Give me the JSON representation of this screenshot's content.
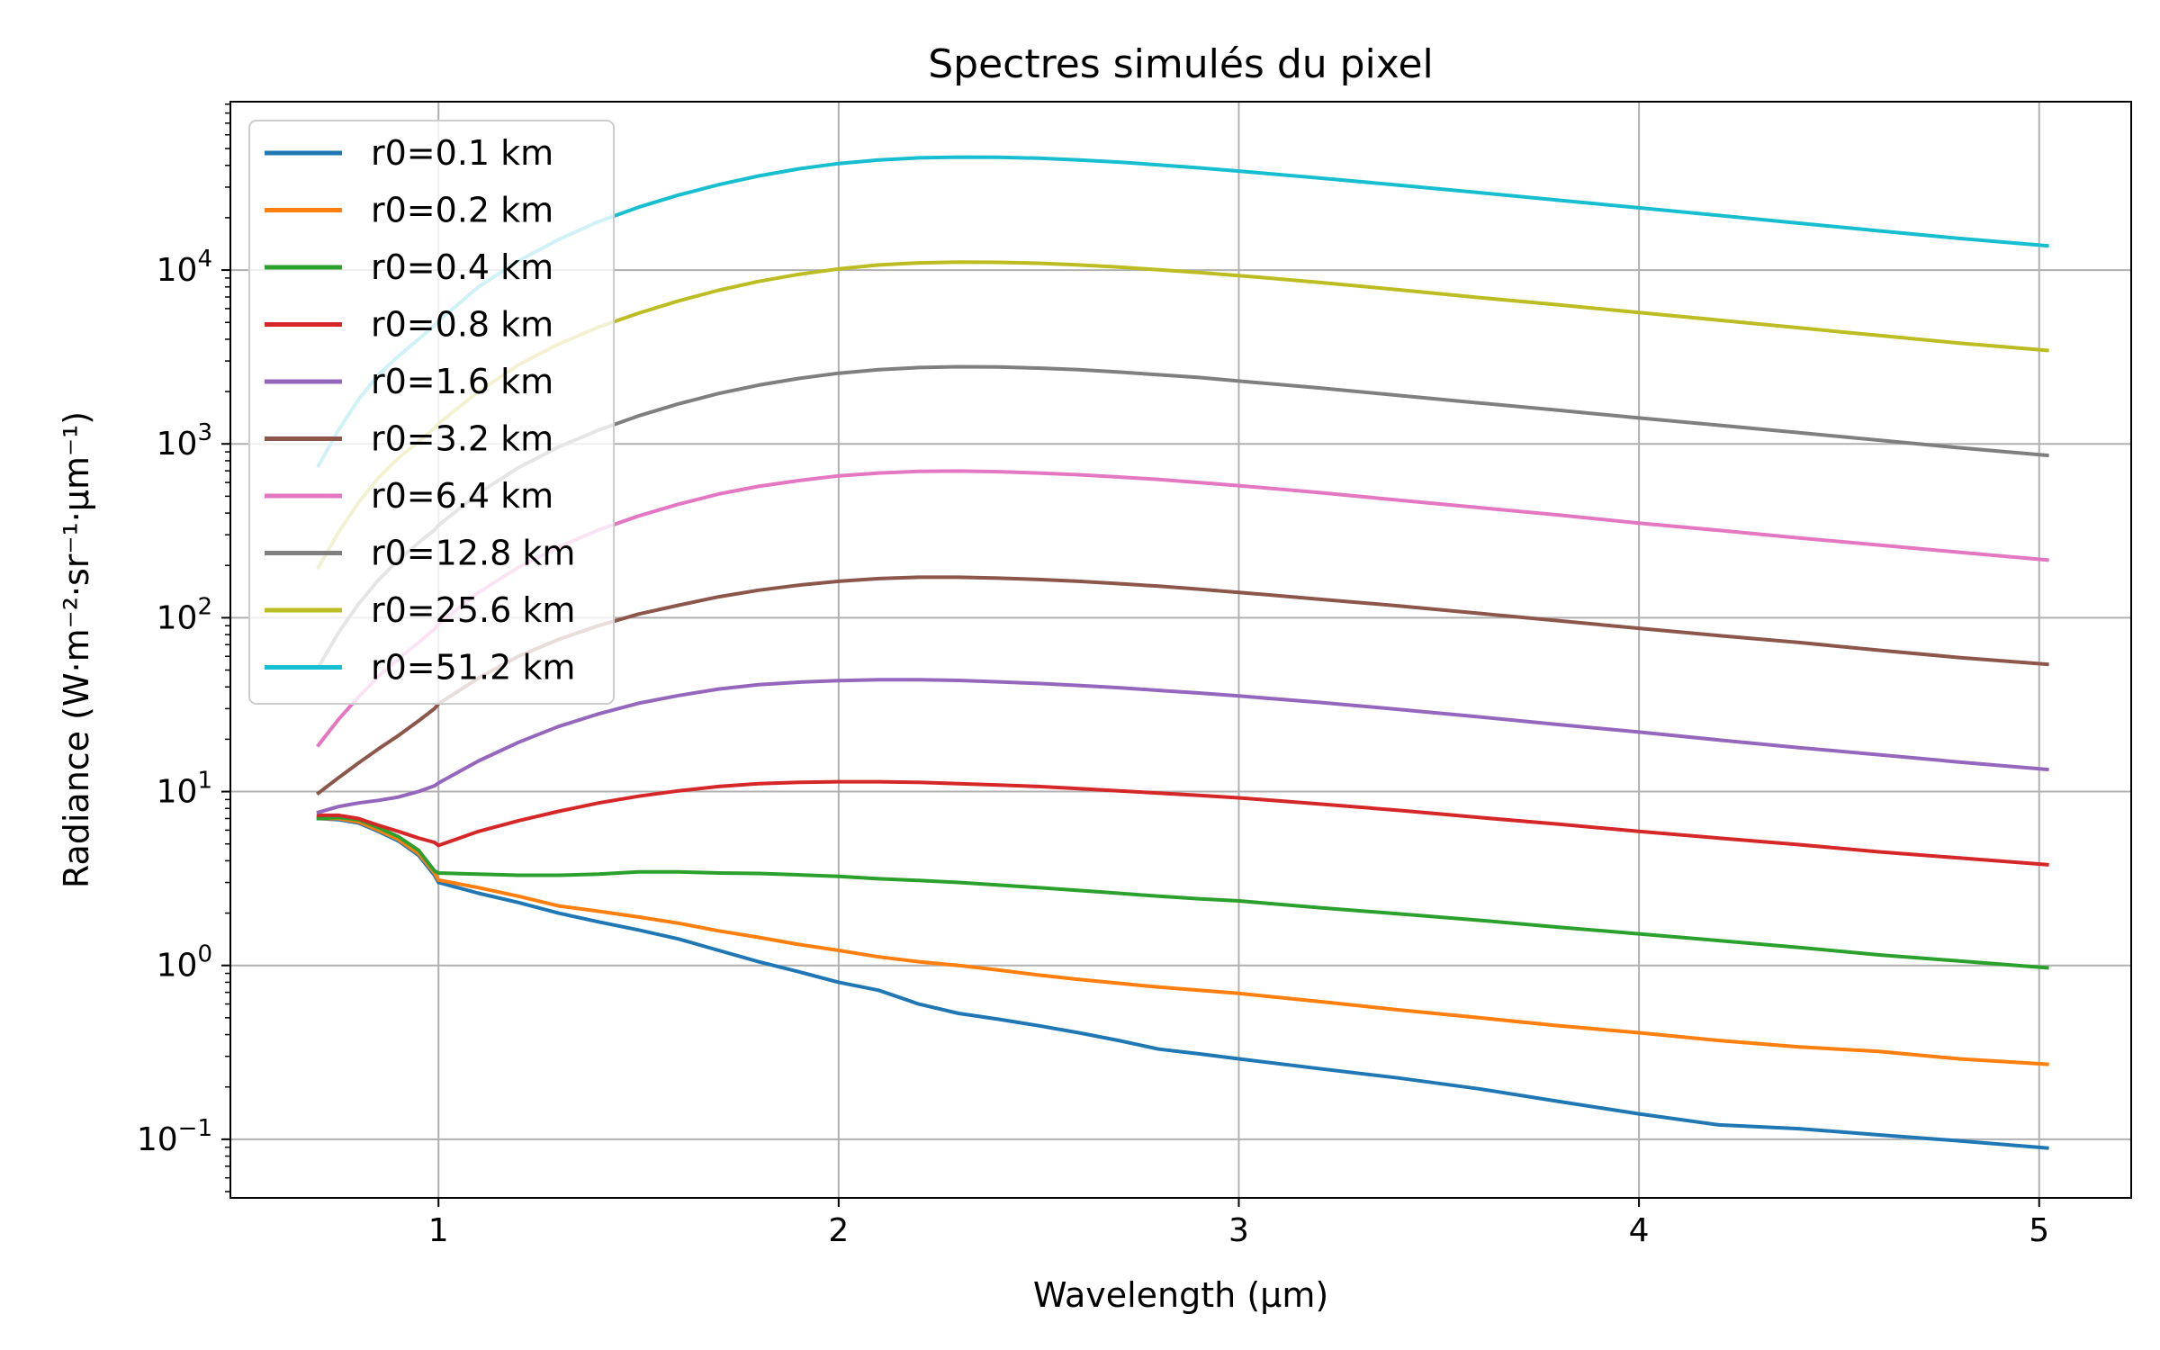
{
  "chart_data": {
    "type": "line",
    "title": "Spectres simulés du pixel",
    "xlabel": "Wavelength (µm)",
    "ylabel": "Radiance (W·m⁻²·sr⁻¹·µm⁻¹)",
    "yscale": "log",
    "xlim": [
      0.48,
      5.23
    ],
    "ylim": [
      0.046,
      93000
    ],
    "x_ticks": [
      {
        "value": 1,
        "label": "1"
      },
      {
        "value": 2,
        "label": "2"
      },
      {
        "value": 3,
        "label": "3"
      },
      {
        "value": 4,
        "label": "4"
      },
      {
        "value": 5,
        "label": "5"
      }
    ],
    "y_ticks": [
      {
        "value": 0.1,
        "base": "10",
        "exp": "−1"
      },
      {
        "value": 1,
        "base": "10",
        "exp": "0"
      },
      {
        "value": 10,
        "base": "10",
        "exp": "1"
      },
      {
        "value": 100,
        "base": "10",
        "exp": "2"
      },
      {
        "value": 1000,
        "base": "10",
        "exp": "3"
      },
      {
        "value": 10000,
        "base": "10",
        "exp": "4"
      }
    ],
    "grid": true,
    "legend_position": "top-left",
    "x": [
      0.7,
      0.75,
      0.8,
      0.85,
      0.9,
      0.95,
      0.99,
      1.0,
      1.1,
      1.2,
      1.3,
      1.4,
      1.5,
      1.6,
      1.7,
      1.8,
      1.9,
      2.0,
      2.1,
      2.2,
      2.3,
      2.4,
      2.5,
      2.6,
      2.7,
      2.8,
      2.9,
      3.0,
      3.2,
      3.4,
      3.6,
      3.8,
      4.0,
      4.2,
      4.4,
      4.6,
      4.8,
      5.02
    ],
    "series": [
      {
        "name": "r0=0.1 km",
        "color": "#1f77b4",
        "values": [
          7.0,
          6.9,
          6.6,
          5.9,
          5.2,
          4.3,
          3.3,
          3.0,
          2.6,
          2.3,
          2.0,
          1.78,
          1.6,
          1.42,
          1.22,
          1.05,
          0.92,
          0.8,
          0.72,
          0.6,
          0.53,
          0.49,
          0.45,
          0.41,
          0.37,
          0.33,
          0.31,
          0.29,
          0.255,
          0.225,
          0.195,
          0.165,
          0.14,
          0.121,
          0.115,
          0.106,
          0.098,
          0.089
        ]
      },
      {
        "name": "r0=0.2 km",
        "color": "#ff7f0e",
        "values": [
          7.0,
          7.0,
          6.7,
          6.0,
          5.3,
          4.4,
          3.4,
          3.1,
          2.8,
          2.5,
          2.2,
          2.05,
          1.9,
          1.75,
          1.58,
          1.45,
          1.32,
          1.22,
          1.12,
          1.05,
          1.0,
          0.94,
          0.88,
          0.83,
          0.79,
          0.75,
          0.72,
          0.69,
          0.62,
          0.555,
          0.5,
          0.45,
          0.41,
          0.37,
          0.34,
          0.32,
          0.29,
          0.27
        ]
      },
      {
        "name": "r0=0.4 km",
        "color": "#2ca02c",
        "values": [
          7.0,
          7.1,
          6.9,
          6.2,
          5.5,
          4.6,
          3.5,
          3.4,
          3.35,
          3.3,
          3.3,
          3.35,
          3.45,
          3.45,
          3.4,
          3.38,
          3.32,
          3.25,
          3.15,
          3.08,
          3.0,
          2.9,
          2.8,
          2.7,
          2.6,
          2.5,
          2.42,
          2.35,
          2.15,
          1.98,
          1.82,
          1.66,
          1.52,
          1.39,
          1.27,
          1.15,
          1.06,
          0.97
        ]
      },
      {
        "name": "r0=0.8 km",
        "color": "#d62728",
        "values": [
          7.3,
          7.3,
          7.0,
          6.4,
          5.9,
          5.4,
          5.1,
          4.9,
          5.9,
          6.8,
          7.7,
          8.6,
          9.4,
          10.1,
          10.7,
          11.1,
          11.3,
          11.4,
          11.4,
          11.3,
          11.1,
          10.9,
          10.7,
          10.4,
          10.1,
          9.8,
          9.5,
          9.2,
          8.5,
          7.8,
          7.1,
          6.5,
          5.9,
          5.4,
          4.95,
          4.5,
          4.15,
          3.8
        ]
      },
      {
        "name": "r0=1.6 km",
        "color": "#9467bd",
        "values": [
          7.6,
          8.2,
          8.6,
          8.9,
          9.3,
          10.0,
          10.8,
          11.2,
          15.0,
          19.2,
          23.7,
          28.0,
          32.2,
          35.7,
          38.9,
          41.2,
          42.6,
          43.5,
          44.0,
          44.0,
          43.6,
          42.8,
          41.9,
          40.8,
          39.6,
          38.2,
          36.9,
          35.5,
          32.6,
          29.7,
          26.9,
          24.3,
          22.0,
          19.8,
          17.9,
          16.3,
          14.8,
          13.4
        ]
      },
      {
        "name": "r0=3.2 km",
        "color": "#8c564b",
        "values": [
          9.8,
          12.0,
          14.6,
          17.6,
          21.0,
          25.5,
          30.0,
          32.0,
          45.0,
          60.0,
          75.0,
          90.0,
          105.0,
          118.0,
          132.0,
          144.0,
          154.0,
          162.0,
          168.0,
          171.0,
          171.0,
          169.0,
          166.0,
          162.0,
          157.0,
          152.0,
          146.0,
          140.0,
          128.0,
          117.0,
          106.0,
          96.0,
          87.0,
          79.0,
          72.0,
          65.0,
          59.0,
          54.0
        ]
      },
      {
        "name": "r0=6.4 km",
        "color": "#e377c2",
        "values": [
          18.5,
          26.0,
          35.0,
          46.0,
          58.0,
          72.0,
          86.0,
          92.0,
          140.0,
          195.0,
          255.0,
          320.0,
          385.0,
          450.0,
          515.0,
          570.0,
          615.0,
          655.0,
          680.0,
          695.0,
          698.0,
          692.0,
          680.0,
          665.0,
          645.0,
          625.0,
          600.0,
          575.0,
          525.0,
          475.0,
          430.0,
          390.0,
          350.0,
          318.0,
          288.0,
          262.0,
          238.0,
          215.0
        ]
      },
      {
        "name": "r0=12.8 km",
        "color": "#7f7f7f",
        "values": [
          52.0,
          82.0,
          120.0,
          165.0,
          215.0,
          270.0,
          320.0,
          340.0,
          520.0,
          730.0,
          960.0,
          1200.0,
          1450.0,
          1700.0,
          1950.0,
          2180.0,
          2380.0,
          2550.0,
          2670.0,
          2750.0,
          2780.0,
          2770.0,
          2730.0,
          2670.0,
          2590.0,
          2500.0,
          2410.0,
          2300.0,
          2100.0,
          1900.0,
          1720.0,
          1560.0,
          1410.0,
          1280.0,
          1160.0,
          1050.0,
          950.0,
          860.0
        ]
      },
      {
        "name": "r0=25.6 km",
        "color": "#bcbd22",
        "values": [
          195.0,
          310.0,
          460.0,
          640.0,
          830.0,
          1030.0,
          1230.0,
          1310.0,
          2000.0,
          2850.0,
          3750.0,
          4700.0,
          5650.0,
          6650.0,
          7650.0,
          8600.0,
          9450.0,
          10150.0,
          10700.0,
          11000.0,
          11100.0,
          11080.0,
          10950.0,
          10700.0,
          10400.0,
          10050.0,
          9680.0,
          9300.0,
          8500.0,
          7700.0,
          6950.0,
          6300.0,
          5700.0,
          5150.0,
          4650.0,
          4200.0,
          3800.0,
          3450.0
        ]
      },
      {
        "name": "r0=51.2 km",
        "color": "#17becf",
        "values": [
          750.0,
          1200.0,
          1800.0,
          2500.0,
          3200.0,
          4000.0,
          4800.0,
          5100.0,
          8000.0,
          11300.0,
          15000.0,
          19000.0,
          23000.0,
          27000.0,
          31000.0,
          34800.0,
          38200.0,
          41000.0,
          43000.0,
          44200.0,
          44600.0,
          44500.0,
          44000.0,
          43000.0,
          41800.0,
          40300.0,
          38700.0,
          37100.0,
          33900.0,
          30800.0,
          27900.0,
          25200.0,
          22800.0,
          20600.0,
          18600.0,
          16800.0,
          15200.0,
          13800.0
        ]
      }
    ]
  }
}
